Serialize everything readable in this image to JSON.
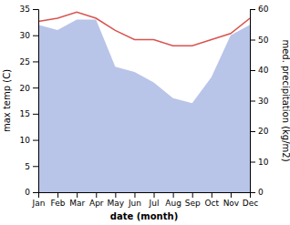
{
  "chart_data": {
    "type": "line",
    "xlabel": "date (month)",
    "ylabel": "max temp (C)",
    "y2label": "med. precipitation (kg/m2)",
    "categories": [
      "Jan",
      "Feb",
      "Mar",
      "Apr",
      "May",
      "Jun",
      "Jul",
      "Aug",
      "Sep",
      "Oct",
      "Nov",
      "Dec"
    ],
    "series": [
      {
        "type": "area",
        "color": "#b8c4e8",
        "values": [
          32,
          31,
          33,
          33,
          24,
          23,
          21,
          18,
          17,
          22,
          30,
          32
        ]
      },
      {
        "type": "line",
        "color": "#d9534f",
        "axis": "y2",
        "values": [
          56,
          57,
          59,
          57,
          53,
          50,
          50,
          48,
          48,
          50,
          52,
          57
        ]
      }
    ],
    "ylim": [
      0,
      35
    ],
    "yticks": [
      0,
      5,
      10,
      15,
      20,
      25,
      30,
      35
    ],
    "y2lim": [
      0,
      60
    ],
    "y2ticks": [
      0,
      10,
      20,
      30,
      40,
      50,
      60
    ]
  }
}
